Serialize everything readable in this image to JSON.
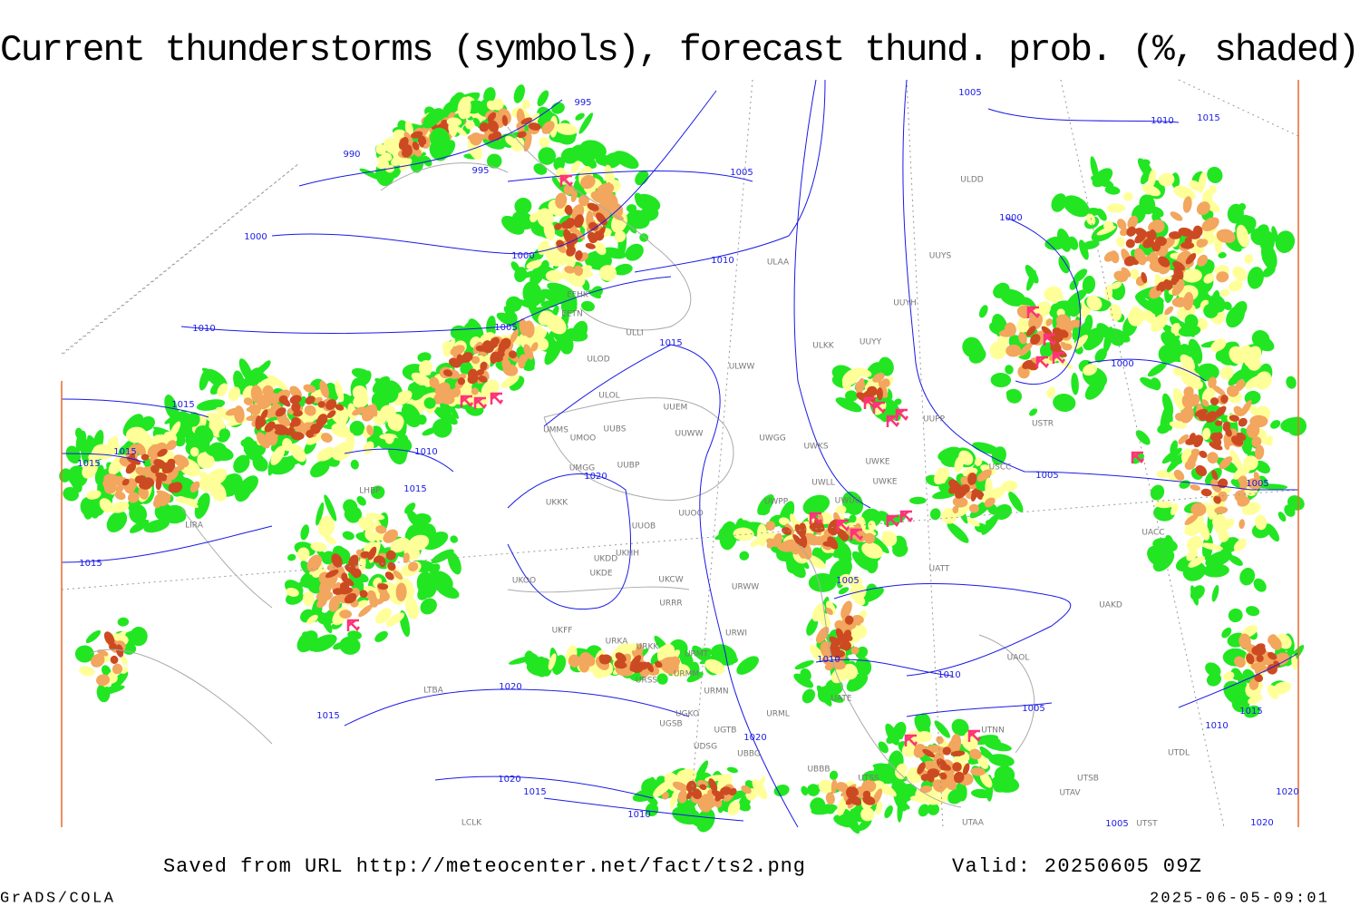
{
  "title": "Current thunderstorms (symbols), forecast thund. prob. (%, shaded)",
  "footer": {
    "source": "Saved from URL http://meteocenter.net/fact/ts2.png",
    "valid": "Valid: 20250605 09Z",
    "software": "GrADS/COLA",
    "timestamp": "2025-06-05-09:01"
  },
  "isobar_labels": [
    995,
    990,
    995,
    1005,
    1000,
    1000,
    1010,
    1005,
    1010,
    1015,
    1015,
    1015,
    1015,
    1010,
    1020,
    1015,
    1015,
    1005,
    1010,
    1020,
    1015,
    1020,
    1020,
    1015,
    1010,
    1005,
    1010,
    1015,
    1000,
    1000,
    1005,
    1005,
    1010,
    1005,
    1010,
    1015,
    1020,
    1020,
    1005
  ],
  "station_labels": [
    "ULDD",
    "ULAA",
    "UUYS",
    "UUYH",
    "UUYY",
    "ULKK",
    "ULWW",
    "ULOD",
    "ULOL",
    "UUEM",
    "UMMS",
    "UMOO",
    "UUBS",
    "UUWW",
    "UWGG",
    "UWKS",
    "UWKE",
    "UMGG",
    "UUBP",
    "UUPP",
    "USTR",
    "USCC",
    "UWLL",
    "UWKE",
    "UWPP",
    "UWUU",
    "UUOO",
    "UKKK",
    "UUOB",
    "UACC",
    "UKHH",
    "UKDD",
    "UATT",
    "UKOO",
    "UKDE",
    "UKCW",
    "URWW",
    "URRR",
    "UAKD",
    "UKFF",
    "URKA",
    "URKK",
    "URWI",
    "URMT",
    "UAOL",
    "URMM",
    "URSS",
    "URMN",
    "UATE",
    "URML",
    "UGKO",
    "UGSB",
    "UGTB",
    "UDSG",
    "UBBG",
    "UBBB",
    "UTSB",
    "UTSS",
    "UTAV",
    "UTAA",
    "UTDL",
    "UTNN",
    "UTST",
    "LIRA",
    "LHBP",
    "LTBA",
    "LCLK",
    "EFHK",
    "EETN",
    "ULLI"
  ]
}
